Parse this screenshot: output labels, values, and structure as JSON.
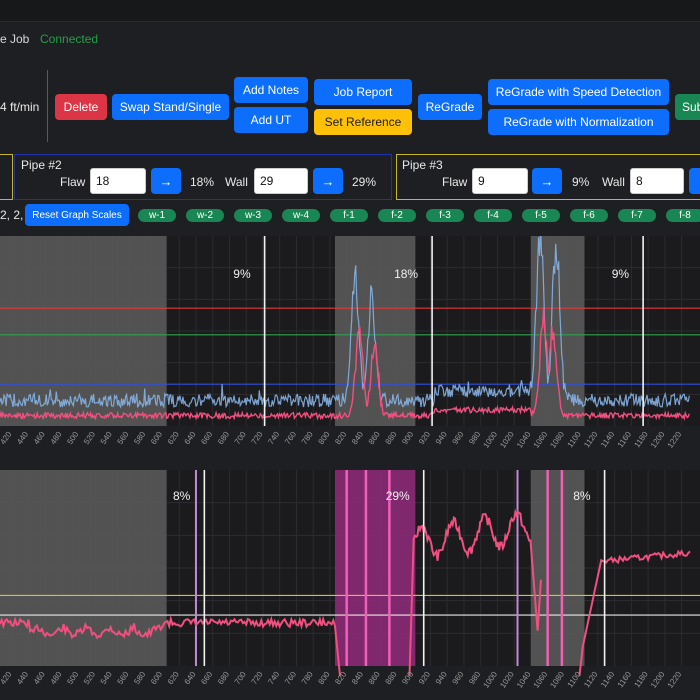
{
  "header": {
    "job_title": "e Job",
    "status": "Connected",
    "speed": "4 ft/min"
  },
  "toolbar": {
    "delete": "Delete",
    "swap": "Swap Stand/Single",
    "add_notes": "Add Notes",
    "add_ut": "Add UT",
    "job_report": "Job Report",
    "set_reference": "Set Reference",
    "regrade": "ReGrade",
    "regrade_speed": "ReGrade with Speed Detection",
    "regrade_norm": "ReGrade with Normalization",
    "submit_partial": "Sub"
  },
  "pipes": [
    {
      "title": "Pipe #2",
      "flaw_label": "Flaw",
      "flaw_value": "18",
      "flaw_pct": "18%",
      "wall_label": "Wall",
      "wall_value": "29",
      "wall_pct": "29%"
    },
    {
      "title": "Pipe #3",
      "flaw_label": "Flaw",
      "flaw_value": "9",
      "flaw_pct": "9%",
      "wall_label": "Wall",
      "wall_value": "8"
    }
  ],
  "arrow_glyph": "→",
  "scales": {
    "prefix": "2, 2,",
    "reset_label": "Reset Graph Scales",
    "tags": [
      "w-1",
      "w-2",
      "w-3",
      "w-4",
      "f-1",
      "f-2",
      "f-3",
      "f-4",
      "f-5",
      "f-6",
      "f-7",
      "f-8"
    ]
  },
  "colors": {
    "blue_trace": "#86b3e6",
    "pink_trace": "#f0507f",
    "red_line": "#e03a3a",
    "green_line": "#2fa24a",
    "blue_line": "#3050e0",
    "yellow_line": "#e0c020",
    "magenta_band": "#8c2a78",
    "gray_band": "#5c5c5c"
  },
  "chart_data": [
    {
      "type": "line",
      "xlim": [
        400,
        1230
      ],
      "x_ticks": [
        400,
        420,
        440,
        460,
        480,
        500,
        520,
        540,
        560,
        580,
        600,
        620,
        640,
        660,
        680,
        700,
        720,
        740,
        760,
        780,
        800,
        820,
        840,
        860,
        880,
        900,
        920,
        940,
        960,
        980,
        1000,
        1020,
        1040,
        1060,
        1080,
        1100,
        1120,
        1140,
        1160,
        1180,
        1200,
        1220
      ],
      "gray_regions": [
        [
          400,
          605
        ],
        [
          806,
          902
        ],
        [
          1040,
          1104
        ]
      ],
      "vertical_markers": [
        {
          "x": 722,
          "label": "9%"
        },
        {
          "x": 922,
          "label": "18%"
        },
        {
          "x": 1174,
          "label": "9%"
        }
      ],
      "thresholds": [
        {
          "level": 0.62,
          "color": "red"
        },
        {
          "level": 0.48,
          "color": "green"
        },
        {
          "level": 0.22,
          "color": "blue"
        }
      ],
      "series": [
        {
          "color": "blue",
          "peaks": [
            [
              830,
              0.74
            ],
            [
              850,
              0.62
            ],
            [
              1051,
              1.0
            ],
            [
              1070,
              0.95
            ]
          ]
        },
        {
          "color": "pink",
          "peaks": [
            [
              835,
              0.5
            ],
            [
              853,
              0.4
            ],
            [
              1055,
              0.58
            ],
            [
              1066,
              0.55
            ]
          ]
        }
      ]
    },
    {
      "type": "line",
      "xlim": [
        400,
        1230
      ],
      "x_ticks": [
        400,
        420,
        440,
        460,
        480,
        500,
        520,
        540,
        560,
        580,
        600,
        620,
        640,
        660,
        680,
        700,
        720,
        740,
        760,
        780,
        800,
        820,
        840,
        860,
        880,
        900,
        920,
        940,
        960,
        980,
        1000,
        1020,
        1040,
        1060,
        1080,
        1100,
        1120,
        1140,
        1160,
        1180,
        1200,
        1220
      ],
      "gray_regions": [
        [
          400,
          605
        ],
        [
          1040,
          1104
        ]
      ],
      "magenta_regions": [
        [
          806,
          902
        ]
      ],
      "vertical_markers": [
        {
          "x": 650,
          "label": "8%"
        },
        {
          "x": 912,
          "label": "29%"
        },
        {
          "x": 1128,
          "label": "8%"
        }
      ],
      "purple_markers": [
        640,
        1024
      ],
      "thresholds": [
        {
          "level": 0.36,
          "color": "yellow"
        },
        {
          "level": 0.26,
          "color": "white"
        }
      ]
    }
  ]
}
